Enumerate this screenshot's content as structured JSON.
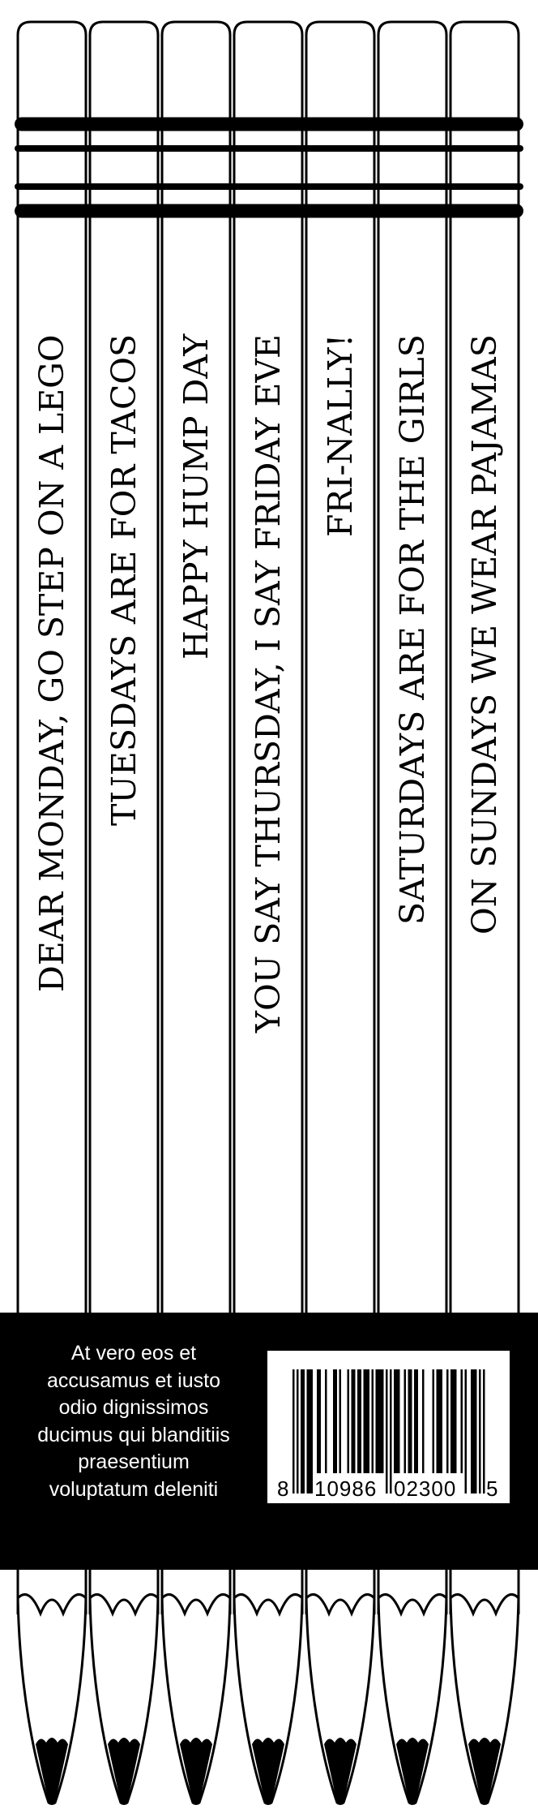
{
  "colors": {
    "ink": "#000000",
    "paper": "#ffffff"
  },
  "pencils": [
    {
      "slogan": "DEAR MONDAY, GO STEP ON A LEGO"
    },
    {
      "slogan": "TUESDAYS ARE FOR TACOS"
    },
    {
      "slogan": "HAPPY HUMP DAY"
    },
    {
      "slogan": "YOU SAY THURSDAY, I SAY FRIDAY EVE"
    },
    {
      "slogan": "FRI-NALLY!"
    },
    {
      "slogan": "SATURDAYS ARE FOR THE GIRLS"
    },
    {
      "slogan": "ON SUNDAYS WE WEAR PAJAMAS"
    }
  ],
  "label": {
    "blurb_lines": [
      "At vero eos et",
      "accusamus et iusto",
      "odio dignissimos",
      "ducimus qui blanditiis",
      "praesentium",
      "voluptatum deleniti"
    ],
    "barcode": {
      "digits": "810986023005",
      "groups": [
        "8",
        "10986",
        "02300",
        "5"
      ]
    }
  }
}
